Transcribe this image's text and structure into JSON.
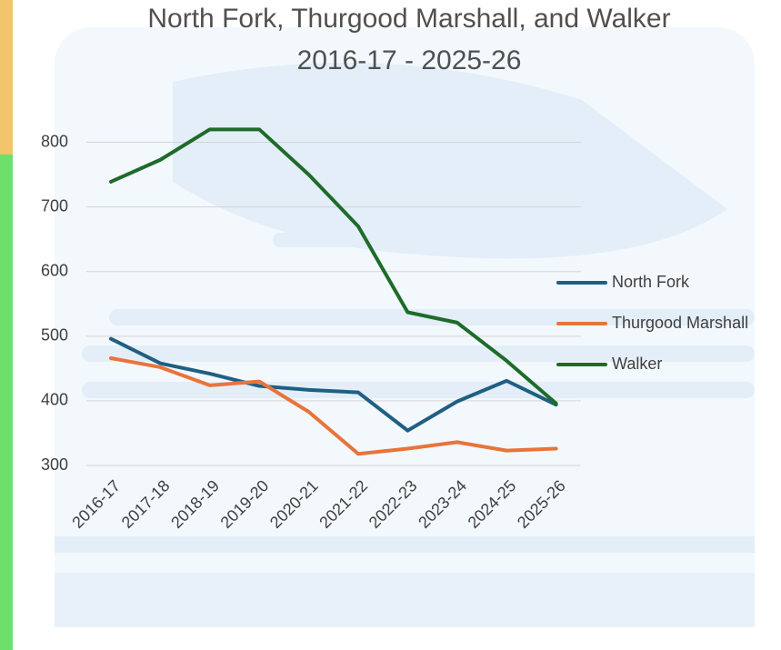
{
  "chart_data": {
    "type": "line",
    "title": "North Fork, Thurgood Marshall, and Walker",
    "subtitle": "2016-17 - 2025-26",
    "categories": [
      "2016-17",
      "2017-18",
      "2018-19",
      "2019-20",
      "2020-21",
      "2021-22",
      "2022-23",
      "2023-24",
      "2024-25",
      "2025-26"
    ],
    "series": [
      {
        "name": "North Fork",
        "color": "#1f5f82",
        "values": [
          496,
          458,
          442,
          423,
          417,
          413,
          354,
          399,
          431,
          394
        ]
      },
      {
        "name": "Thurgood Marshall",
        "color": "#e8743b",
        "values": [
          466,
          452,
          424,
          430,
          383,
          318,
          326,
          336,
          323,
          326
        ]
      },
      {
        "name": "Walker",
        "color": "#1e6b2a",
        "values": [
          739,
          773,
          820,
          820,
          750,
          670,
          537,
          521,
          462,
          396
        ]
      }
    ],
    "ylim": [
      300,
      850
    ],
    "yticks": [
      300,
      400,
      500,
      600,
      700,
      800
    ],
    "grid": true,
    "legend": "right"
  }
}
